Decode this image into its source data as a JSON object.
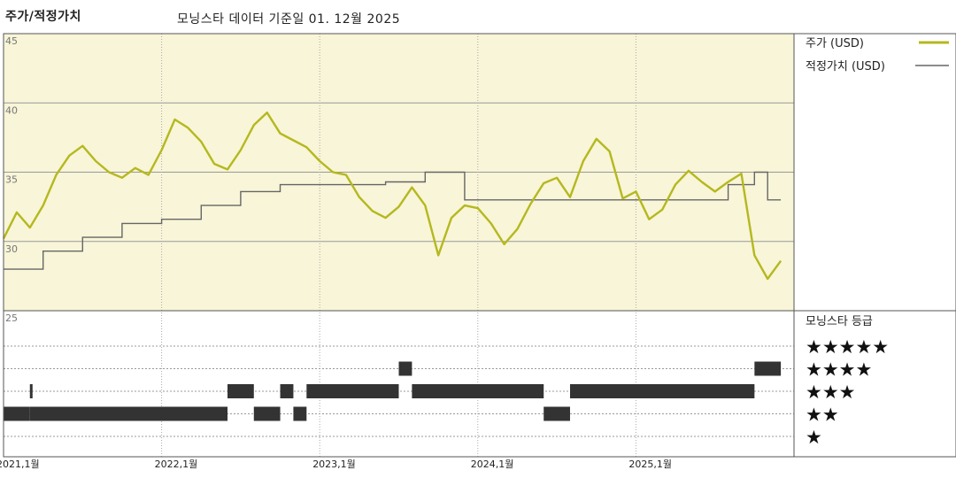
{
  "header": {
    "title": "주가/적정가치",
    "subtitle": "모닝스타 데이터 기준일 01. 12월 2025"
  },
  "legend": {
    "price_label": "주가 (USD)",
    "fair_label": "적정가치 (USD)",
    "rating_title": "모닝스타 등급"
  },
  "colors": {
    "price_line": "#b5b81e",
    "fair_line": "#666666",
    "plot_bg": "#f8f5d8",
    "bars": "#333333"
  },
  "chart_data": [
    {
      "type": "line",
      "title": "주가/적정가치",
      "subtitle": "모닝스타 데이터 기준일 01. 12월 2025",
      "ylim": [
        25,
        45
      ],
      "yticks": [
        25,
        30,
        35,
        40,
        45
      ],
      "x_start": "2021-01",
      "x_end": "2026-01",
      "xticks": [
        "2021,1월",
        "2022,1월",
        "2023,1월",
        "2024,1월",
        "2025,1월"
      ],
      "grid": true,
      "legend_position": "right",
      "series": [
        {
          "name": "주가 (USD)",
          "points": [
            [
              "2021-01",
              30.2
            ],
            [
              "2021-02",
              32.1
            ],
            [
              "2021-03",
              31.0
            ],
            [
              "2021-04",
              32.6
            ],
            [
              "2021-05",
              34.8
            ],
            [
              "2021-06",
              36.2
            ],
            [
              "2021-07",
              36.9
            ],
            [
              "2021-08",
              35.8
            ],
            [
              "2021-09",
              35.0
            ],
            [
              "2021-10",
              34.6
            ],
            [
              "2021-11",
              35.3
            ],
            [
              "2021-12",
              34.8
            ],
            [
              "2022-01",
              36.6
            ],
            [
              "2022-02",
              38.8
            ],
            [
              "2022-03",
              38.2
            ],
            [
              "2022-04",
              37.2
            ],
            [
              "2022-05",
              35.6
            ],
            [
              "2022-06",
              35.2
            ],
            [
              "2022-07",
              36.6
            ],
            [
              "2022-08",
              38.4
            ],
            [
              "2022-09",
              39.3
            ],
            [
              "2022-10",
              37.8
            ],
            [
              "2022-11",
              37.3
            ],
            [
              "2022-12",
              36.8
            ],
            [
              "2023-01",
              35.8
            ],
            [
              "2023-02",
              35.0
            ],
            [
              "2023-03",
              34.8
            ],
            [
              "2023-04",
              33.2
            ],
            [
              "2023-05",
              32.2
            ],
            [
              "2023-06",
              31.7
            ],
            [
              "2023-07",
              32.5
            ],
            [
              "2023-08",
              33.9
            ],
            [
              "2023-09",
              32.6
            ],
            [
              "2023-10",
              29.0
            ],
            [
              "2023-11",
              31.7
            ],
            [
              "2023-12",
              32.6
            ],
            [
              "2024-01",
              32.4
            ],
            [
              "2024-02",
              31.3
            ],
            [
              "2024-03",
              29.8
            ],
            [
              "2024-04",
              30.9
            ],
            [
              "2024-05",
              32.7
            ],
            [
              "2024-06",
              34.2
            ],
            [
              "2024-07",
              34.6
            ],
            [
              "2024-08",
              33.2
            ],
            [
              "2024-09",
              35.8
            ],
            [
              "2024-10",
              37.4
            ],
            [
              "2024-11",
              36.5
            ],
            [
              "2024-12",
              33.1
            ],
            [
              "2025-01",
              33.6
            ],
            [
              "2025-02",
              31.6
            ],
            [
              "2025-03",
              32.3
            ],
            [
              "2025-04",
              34.1
            ],
            [
              "2025-05",
              35.1
            ],
            [
              "2025-06",
              34.3
            ],
            [
              "2025-07",
              33.6
            ],
            [
              "2025-08",
              34.3
            ],
            [
              "2025-09",
              34.9
            ],
            [
              "2025-10",
              29.0
            ],
            [
              "2025-11",
              27.3
            ],
            [
              "2025-12",
              28.6
            ]
          ]
        },
        {
          "name": "적정가치 (USD)",
          "points": [
            [
              "2021-01",
              28.0
            ],
            [
              "2021-04",
              28.0
            ],
            [
              "2021-04",
              29.3
            ],
            [
              "2021-07",
              29.3
            ],
            [
              "2021-07",
              30.3
            ],
            [
              "2021-10",
              30.3
            ],
            [
              "2021-10",
              31.3
            ],
            [
              "2022-01",
              31.3
            ],
            [
              "2022-01",
              31.6
            ],
            [
              "2022-04",
              31.6
            ],
            [
              "2022-04",
              32.6
            ],
            [
              "2022-07",
              32.6
            ],
            [
              "2022-07",
              33.6
            ],
            [
              "2022-10",
              33.6
            ],
            [
              "2022-10",
              34.1
            ],
            [
              "2023-06",
              34.1
            ],
            [
              "2023-06",
              34.3
            ],
            [
              "2023-09",
              34.3
            ],
            [
              "2023-09",
              35.0
            ],
            [
              "2023-12",
              35.0
            ],
            [
              "2023-12",
              33.0
            ],
            [
              "2025-08",
              33.0
            ],
            [
              "2025-08",
              34.1
            ],
            [
              "2025-10",
              34.1
            ],
            [
              "2025-10",
              35.0
            ],
            [
              "2025-11",
              35.0
            ],
            [
              "2025-11",
              33.0
            ],
            [
              "2025-12",
              33.0
            ]
          ]
        }
      ]
    },
    {
      "type": "bar",
      "title": "모닝스타 등급",
      "categories": [
        "★★★★★",
        "★★★★",
        "★★★",
        "★★",
        "★"
      ],
      "periods": [
        {
          "rating": 2,
          "start": "2021-01",
          "end": "2021-03"
        },
        {
          "rating": 3,
          "start": "2021-03",
          "end": "2021-03"
        },
        {
          "rating": 2,
          "start": "2021-03",
          "end": "2022-06"
        },
        {
          "rating": 3,
          "start": "2022-06",
          "end": "2022-08"
        },
        {
          "rating": 2,
          "start": "2022-08",
          "end": "2022-10"
        },
        {
          "rating": 3,
          "start": "2022-10",
          "end": "2022-11"
        },
        {
          "rating": 2,
          "start": "2022-11",
          "end": "2022-12"
        },
        {
          "rating": 3,
          "start": "2022-12",
          "end": "2023-07"
        },
        {
          "rating": 4,
          "start": "2023-07",
          "end": "2023-08"
        },
        {
          "rating": 3,
          "start": "2023-08",
          "end": "2024-06"
        },
        {
          "rating": 2,
          "start": "2024-06",
          "end": "2024-08"
        },
        {
          "rating": 3,
          "start": "2024-08",
          "end": "2025-10"
        },
        {
          "rating": 4,
          "start": "2025-10",
          "end": "2025-12"
        }
      ]
    }
  ]
}
